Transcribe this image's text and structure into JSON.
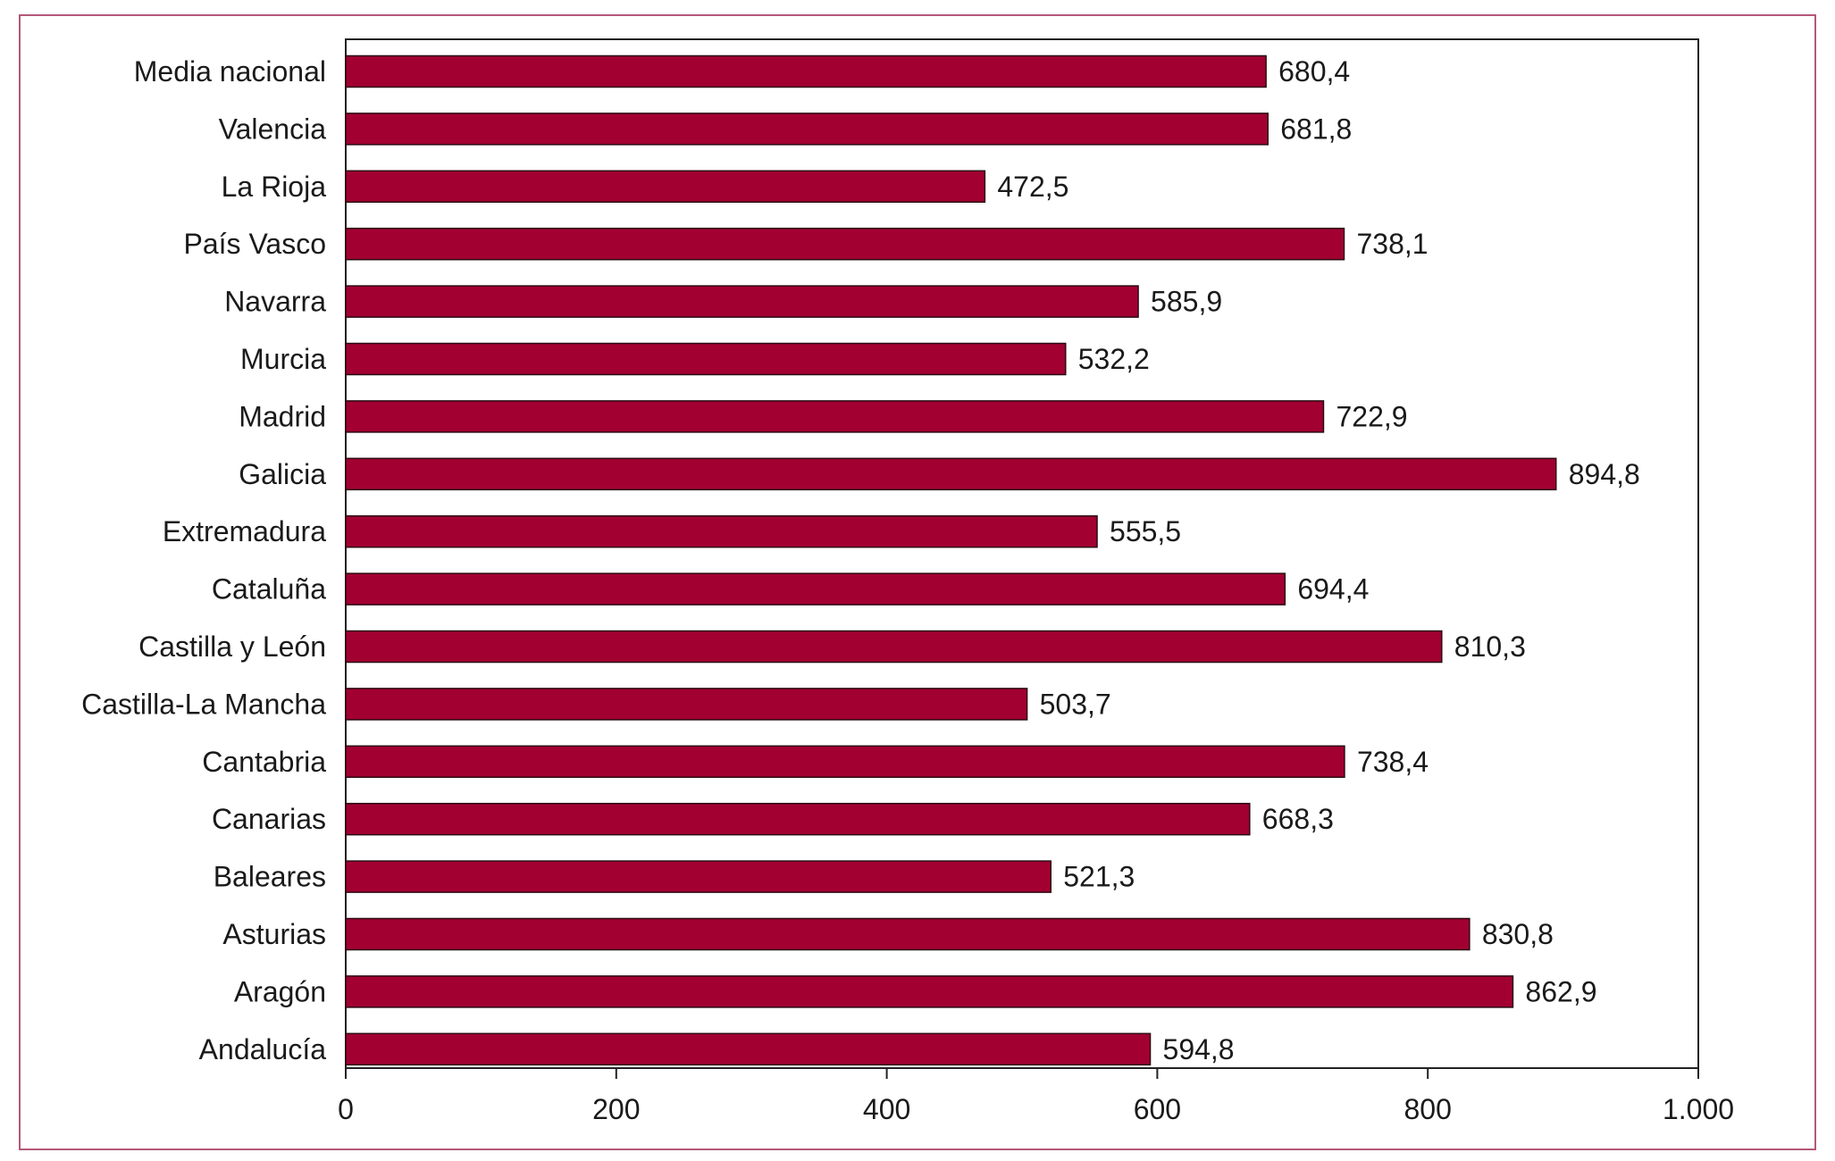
{
  "chart_data": {
    "type": "bar",
    "orientation": "horizontal",
    "categories": [
      "Media nacional",
      "Valencia",
      "La Rioja",
      "País Vasco",
      "Navarra",
      "Murcia",
      "Madrid",
      "Galicia",
      "Extremadura",
      "Cataluña",
      "Castilla y León",
      "Castilla-La Mancha",
      "Cantabria",
      "Canarias",
      "Baleares",
      "Asturias",
      "Aragón",
      "Andalucía"
    ],
    "values": [
      680.4,
      681.8,
      472.5,
      738.1,
      585.9,
      532.2,
      722.9,
      894.8,
      555.5,
      694.4,
      810.3,
      503.7,
      738.4,
      668.3,
      521.3,
      830.8,
      862.9,
      594.8
    ],
    "value_labels": [
      "680,4",
      "681,8",
      "472,5",
      "738,1",
      "585,9",
      "532,2",
      "722,9",
      "894,8",
      "555,5",
      "694,4",
      "810,3",
      "503,7",
      "738,4",
      "668,3",
      "521,3",
      "830,8",
      "862,9",
      "594,8"
    ],
    "title": "",
    "xlabel": "",
    "ylabel": "",
    "xlim": [
      0,
      1000
    ],
    "xticks": [
      0,
      200,
      400,
      600,
      800,
      1000
    ],
    "xtick_labels": [
      "0",
      "200",
      "400",
      "600",
      "800",
      "1.000"
    ],
    "grid": false,
    "legend": "none",
    "bar_color": "#a30032",
    "frame_color": "#b5577a"
  }
}
